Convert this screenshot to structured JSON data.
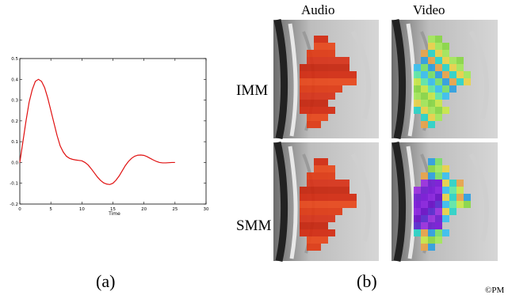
{
  "panel_a": {
    "caption": "(a)",
    "chart_data": {
      "type": "line",
      "title": "",
      "xlabel": "Time",
      "ylabel": "",
      "xlim": [
        0,
        30
      ],
      "ylim": [
        -0.2,
        0.5
      ],
      "x_ticks": [
        "0",
        "5",
        "10",
        "15",
        "20",
        "25",
        "30"
      ],
      "y_ticks": [
        "-0.2",
        "-0.1",
        "0.0",
        "0.1",
        "0.2",
        "0.3",
        "0.4",
        "0.5"
      ],
      "grid": false,
      "legend": "none",
      "series": [
        {
          "color": "#e01010",
          "x": [
            0,
            0.5,
            1,
            1.5,
            2,
            2.5,
            3,
            3.5,
            4,
            4.5,
            5,
            5.5,
            6,
            6.5,
            7,
            7.5,
            8,
            8.5,
            9,
            9.5,
            10,
            10.5,
            11,
            11.5,
            12,
            12.5,
            13,
            13.5,
            14,
            14.5,
            15,
            15.5,
            16,
            16.5,
            17,
            17.5,
            18,
            18.5,
            19,
            19.5,
            20,
            20.5,
            21,
            21.5,
            22,
            22.5,
            23,
            23.5,
            24,
            24.5,
            25
          ],
          "y": [
            0.0,
            0.1,
            0.2,
            0.29,
            0.35,
            0.39,
            0.4,
            0.39,
            0.36,
            0.31,
            0.25,
            0.19,
            0.13,
            0.08,
            0.05,
            0.03,
            0.02,
            0.015,
            0.012,
            0.01,
            0.008,
            0.0,
            -0.012,
            -0.03,
            -0.05,
            -0.07,
            -0.086,
            -0.098,
            -0.104,
            -0.106,
            -0.1,
            -0.085,
            -0.065,
            -0.04,
            -0.015,
            0.005,
            0.02,
            0.03,
            0.035,
            0.036,
            0.034,
            0.028,
            0.02,
            0.012,
            0.005,
            0.0,
            -0.002,
            -0.002,
            -0.001,
            0.0,
            0.0
          ]
        }
      ]
    }
  },
  "panel_b": {
    "caption": "(b)",
    "column_labels": [
      "Audio",
      "Video"
    ],
    "row_labels": [
      "IMM",
      "SMM"
    ],
    "corner_text": "©PM"
  }
}
